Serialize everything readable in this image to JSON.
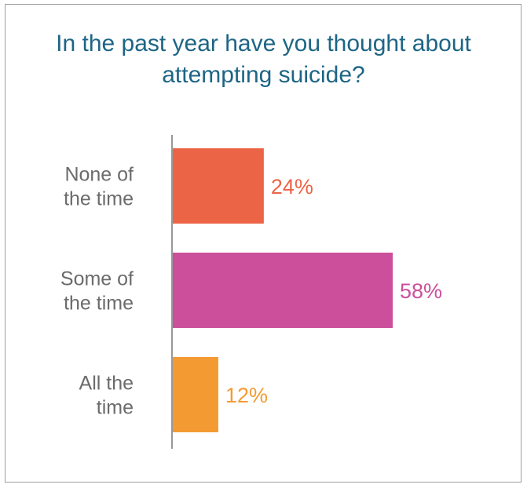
{
  "chart_data": {
    "type": "bar",
    "orientation": "horizontal",
    "title": "In the past year have you thought about attempting suicide?",
    "categories": [
      [
        "None of",
        "the time"
      ],
      [
        "Some of",
        "the time"
      ],
      [
        "All the",
        "time"
      ]
    ],
    "values": [
      24,
      58,
      12
    ],
    "value_labels": [
      "24%",
      "58%",
      "12%"
    ],
    "colors": [
      "#ec6446",
      "#cc4f9b",
      "#f49a33"
    ],
    "xlim": [
      0,
      100
    ],
    "grid": false,
    "legend": "none"
  },
  "colors": {
    "title": "#1d6585",
    "axis_line": "#555555",
    "category_text": "#6b6b6b"
  }
}
